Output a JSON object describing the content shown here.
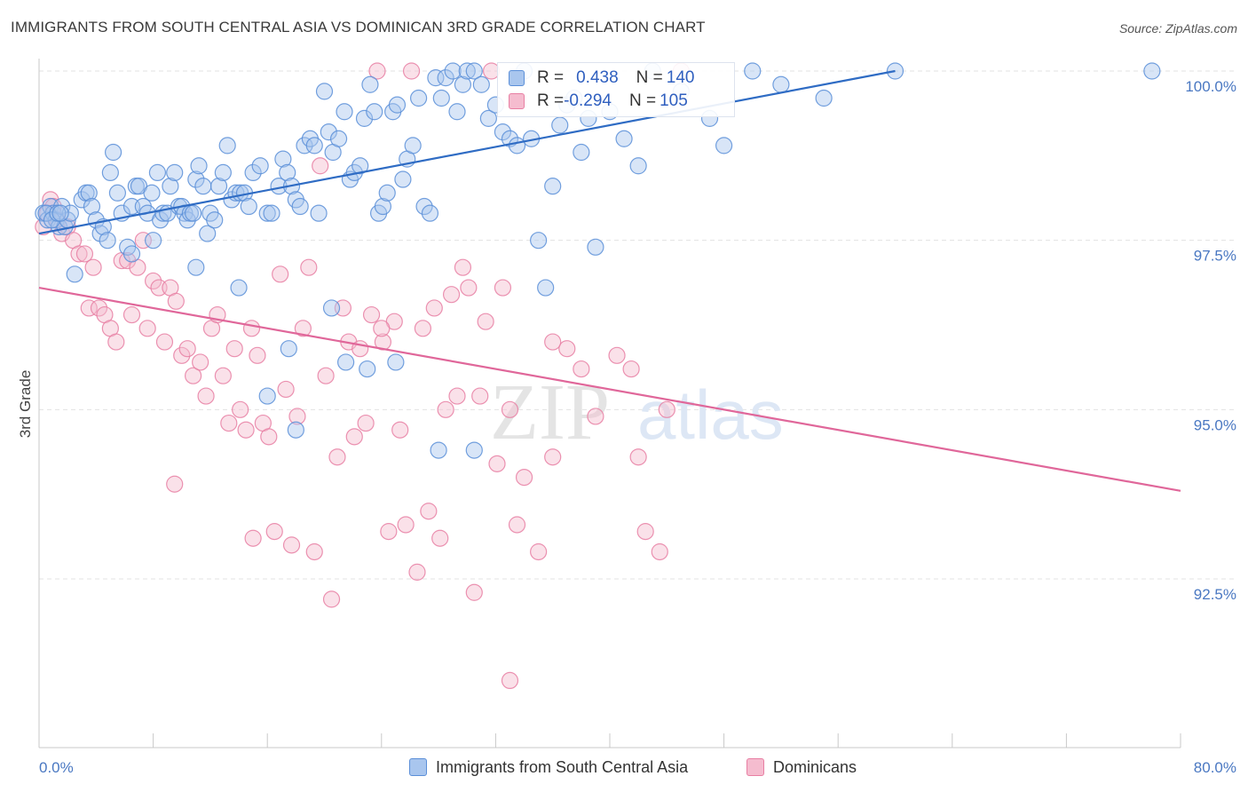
{
  "title": "IMMIGRANTS FROM SOUTH CENTRAL ASIA VS DOMINICAN 3RD GRADE CORRELATION CHART",
  "source": "Source: ZipAtlas.com",
  "watermark": {
    "zip": "ZIP",
    "atlas": "atlas"
  },
  "colors": {
    "blue": "#5b8fd8",
    "blue_fill": "#a9c6ee",
    "pink": "#e87fa3",
    "pink_fill": "#f5bccf",
    "blue_line": "#2f6cc4",
    "pink_line": "#e0679a",
    "tick_text": "#4a78c2"
  },
  "stats": {
    "blue": {
      "r_label": "R = ",
      "r_value": "0.438",
      "n_label": "N = ",
      "n_value": "140"
    },
    "pink": {
      "r_label": "R = ",
      "r_value": "-0.294",
      "n_label": "N = ",
      "n_value": "105"
    }
  },
  "legend": {
    "blue": "Immigrants from South Central Asia",
    "pink": "Dominicans"
  },
  "chart_data": {
    "type": "scatter",
    "ylabel": "3rd Grade",
    "xlim": [
      0,
      80
    ],
    "ylim": [
      90.2,
      100.7
    ],
    "x_tick_labels": [
      "0.0%",
      "80.0%"
    ],
    "y_ticks": [
      {
        "value": 100.0,
        "label": "100.0%"
      },
      {
        "value": 97.5,
        "label": "97.5%"
      },
      {
        "value": 95.0,
        "label": "95.0%"
      },
      {
        "value": 92.5,
        "label": "92.5%"
      }
    ],
    "grid": "horizontal dashed",
    "series": [
      {
        "name": "Immigrants from South Central Asia",
        "trend": {
          "x": [
            0,
            60
          ],
          "y": [
            97.6,
            100.0
          ]
        },
        "points": [
          [
            0.3,
            97.9
          ],
          [
            0.6,
            97.8
          ],
          [
            0.8,
            98.0
          ],
          [
            1.0,
            97.9
          ],
          [
            1.2,
            97.8
          ],
          [
            1.4,
            97.7
          ],
          [
            1.6,
            98.0
          ],
          [
            1.8,
            97.7
          ],
          [
            2.0,
            97.8
          ],
          [
            2.2,
            97.9
          ],
          [
            0.5,
            97.9
          ],
          [
            0.9,
            97.8
          ],
          [
            1.3,
            97.9
          ],
          [
            1.5,
            97.9
          ],
          [
            2.5,
            97.0
          ],
          [
            3.0,
            98.1
          ],
          [
            3.3,
            98.2
          ],
          [
            3.5,
            98.2
          ],
          [
            3.7,
            98.0
          ],
          [
            4.0,
            97.8
          ],
          [
            4.3,
            97.6
          ],
          [
            4.5,
            97.7
          ],
          [
            4.8,
            97.5
          ],
          [
            5.0,
            98.5
          ],
          [
            5.2,
            98.8
          ],
          [
            5.5,
            98.2
          ],
          [
            5.8,
            97.9
          ],
          [
            6.2,
            97.4
          ],
          [
            6.5,
            98.0
          ],
          [
            6.8,
            98.3
          ],
          [
            7.0,
            98.3
          ],
          [
            7.3,
            98.0
          ],
          [
            7.6,
            97.9
          ],
          [
            7.9,
            98.2
          ],
          [
            8.0,
            97.5
          ],
          [
            8.3,
            98.5
          ],
          [
            8.5,
            97.8
          ],
          [
            8.7,
            97.9
          ],
          [
            9.0,
            97.9
          ],
          [
            9.2,
            98.3
          ],
          [
            9.5,
            98.5
          ],
          [
            9.8,
            98.0
          ],
          [
            10.0,
            98.0
          ],
          [
            10.2,
            97.9
          ],
          [
            10.4,
            97.8
          ],
          [
            10.6,
            97.9
          ],
          [
            10.8,
            97.9
          ],
          [
            11.0,
            98.4
          ],
          [
            11.2,
            98.6
          ],
          [
            11.5,
            98.3
          ],
          [
            11.8,
            97.6
          ],
          [
            12.0,
            97.9
          ],
          [
            12.3,
            97.8
          ],
          [
            12.6,
            98.3
          ],
          [
            12.9,
            98.5
          ],
          [
            13.2,
            98.9
          ],
          [
            13.5,
            98.1
          ],
          [
            13.8,
            98.2
          ],
          [
            14.1,
            98.2
          ],
          [
            14.4,
            98.2
          ],
          [
            14.7,
            98.0
          ],
          [
            15.0,
            98.5
          ],
          [
            15.5,
            98.6
          ],
          [
            16.0,
            97.9
          ],
          [
            16.3,
            97.9
          ],
          [
            16.8,
            98.3
          ],
          [
            17.1,
            98.7
          ],
          [
            17.4,
            98.5
          ],
          [
            17.7,
            98.3
          ],
          [
            18.0,
            98.1
          ],
          [
            18.3,
            98.0
          ],
          [
            18.6,
            98.9
          ],
          [
            19.0,
            99.0
          ],
          [
            19.3,
            98.9
          ],
          [
            19.6,
            97.9
          ],
          [
            20.0,
            99.7
          ],
          [
            20.3,
            99.1
          ],
          [
            20.6,
            98.8
          ],
          [
            21.0,
            99.0
          ],
          [
            21.4,
            99.4
          ],
          [
            21.8,
            98.4
          ],
          [
            22.1,
            98.5
          ],
          [
            22.5,
            98.6
          ],
          [
            22.8,
            99.3
          ],
          [
            23.2,
            99.8
          ],
          [
            23.5,
            99.4
          ],
          [
            23.8,
            97.9
          ],
          [
            24.1,
            98.0
          ],
          [
            24.4,
            98.2
          ],
          [
            24.8,
            99.4
          ],
          [
            25.1,
            99.5
          ],
          [
            25.5,
            98.4
          ],
          [
            25.8,
            98.7
          ],
          [
            26.2,
            98.9
          ],
          [
            26.6,
            99.6
          ],
          [
            27.0,
            98.0
          ],
          [
            27.4,
            97.9
          ],
          [
            27.8,
            99.9
          ],
          [
            28.2,
            99.6
          ],
          [
            28.5,
            99.9
          ],
          [
            29.0,
            100.0
          ],
          [
            29.3,
            99.4
          ],
          [
            29.7,
            99.8
          ],
          [
            30.0,
            100.0
          ],
          [
            30.5,
            100.0
          ],
          [
            31.0,
            99.8
          ],
          [
            31.5,
            99.3
          ],
          [
            32.0,
            99.5
          ],
          [
            32.5,
            99.1
          ],
          [
            33.0,
            99.0
          ],
          [
            33.5,
            98.9
          ],
          [
            34.0,
            100.0
          ],
          [
            34.5,
            99.0
          ],
          [
            35.0,
            97.5
          ],
          [
            35.5,
            96.8
          ],
          [
            36.0,
            98.3
          ],
          [
            36.5,
            99.2
          ],
          [
            37.0,
            99.5
          ],
          [
            37.5,
            99.6
          ],
          [
            38.0,
            98.8
          ],
          [
            38.5,
            99.3
          ],
          [
            39.0,
            97.4
          ],
          [
            40.0,
            99.4
          ],
          [
            41.0,
            99.0
          ],
          [
            42.0,
            98.6
          ],
          [
            43.0,
            100.0
          ],
          [
            45.0,
            99.7
          ],
          [
            47.0,
            99.3
          ],
          [
            48.0,
            98.9
          ],
          [
            50.0,
            100.0
          ],
          [
            52.0,
            99.8
          ],
          [
            55.0,
            99.6
          ],
          [
            60.0,
            100.0
          ],
          [
            78.0,
            100.0
          ],
          [
            14.0,
            96.8
          ],
          [
            16.0,
            95.2
          ],
          [
            17.5,
            95.9
          ],
          [
            18.0,
            94.7
          ],
          [
            20.5,
            96.5
          ],
          [
            21.5,
            95.7
          ],
          [
            23.0,
            95.6
          ],
          [
            25.0,
            95.7
          ],
          [
            28.0,
            94.4
          ],
          [
            30.5,
            94.4
          ],
          [
            6.5,
            97.3
          ],
          [
            11.0,
            97.1
          ]
        ]
      },
      {
        "name": "Dominicans",
        "trend": {
          "x": [
            0,
            80
          ],
          "y": [
            96.8,
            93.8
          ]
        },
        "points": [
          [
            0.3,
            97.7
          ],
          [
            0.6,
            97.9
          ],
          [
            0.8,
            98.1
          ],
          [
            1.0,
            98.0
          ],
          [
            1.3,
            97.8
          ],
          [
            1.6,
            97.6
          ],
          [
            2.0,
            97.7
          ],
          [
            2.4,
            97.5
          ],
          [
            2.8,
            97.3
          ],
          [
            3.2,
            97.3
          ],
          [
            3.5,
            96.5
          ],
          [
            3.8,
            97.1
          ],
          [
            4.2,
            96.5
          ],
          [
            4.6,
            96.4
          ],
          [
            5.0,
            96.2
          ],
          [
            5.4,
            96.0
          ],
          [
            5.8,
            97.2
          ],
          [
            6.2,
            97.2
          ],
          [
            6.5,
            96.4
          ],
          [
            6.9,
            97.1
          ],
          [
            7.3,
            97.5
          ],
          [
            7.6,
            96.2
          ],
          [
            8.0,
            96.9
          ],
          [
            8.4,
            96.8
          ],
          [
            8.8,
            96.0
          ],
          [
            9.2,
            96.8
          ],
          [
            9.6,
            96.6
          ],
          [
            10.0,
            95.8
          ],
          [
            10.4,
            95.9
          ],
          [
            10.8,
            95.5
          ],
          [
            11.3,
            95.7
          ],
          [
            11.7,
            95.2
          ],
          [
            12.1,
            96.2
          ],
          [
            12.5,
            96.4
          ],
          [
            12.9,
            95.5
          ],
          [
            13.3,
            94.8
          ],
          [
            13.7,
            95.9
          ],
          [
            14.1,
            95.0
          ],
          [
            14.5,
            94.7
          ],
          [
            14.9,
            96.2
          ],
          [
            15.3,
            95.8
          ],
          [
            15.7,
            94.8
          ],
          [
            16.1,
            94.6
          ],
          [
            16.5,
            93.2
          ],
          [
            16.9,
            97.0
          ],
          [
            17.3,
            95.3
          ],
          [
            17.7,
            93.0
          ],
          [
            18.1,
            94.9
          ],
          [
            18.5,
            96.2
          ],
          [
            18.9,
            97.1
          ],
          [
            19.3,
            92.9
          ],
          [
            19.7,
            98.6
          ],
          [
            20.1,
            95.5
          ],
          [
            20.5,
            92.2
          ],
          [
            20.9,
            94.3
          ],
          [
            21.3,
            96.5
          ],
          [
            21.7,
            96.0
          ],
          [
            22.1,
            94.6
          ],
          [
            22.5,
            95.9
          ],
          [
            22.9,
            94.8
          ],
          [
            23.3,
            96.4
          ],
          [
            23.7,
            100.0
          ],
          [
            24.1,
            96.0
          ],
          [
            24.5,
            93.2
          ],
          [
            24.9,
            96.3
          ],
          [
            25.3,
            94.7
          ],
          [
            25.7,
            93.3
          ],
          [
            26.1,
            100.0
          ],
          [
            26.5,
            92.6
          ],
          [
            26.9,
            96.2
          ],
          [
            27.3,
            93.5
          ],
          [
            27.7,
            96.5
          ],
          [
            28.1,
            93.1
          ],
          [
            28.5,
            95.0
          ],
          [
            28.9,
            96.7
          ],
          [
            29.3,
            95.2
          ],
          [
            29.7,
            97.1
          ],
          [
            30.1,
            96.8
          ],
          [
            30.5,
            92.3
          ],
          [
            30.9,
            95.2
          ],
          [
            31.3,
            96.3
          ],
          [
            31.7,
            100.0
          ],
          [
            32.1,
            94.2
          ],
          [
            32.5,
            96.8
          ],
          [
            33.0,
            95.0
          ],
          [
            33.5,
            93.3
          ],
          [
            34.0,
            94.0
          ],
          [
            35.0,
            92.9
          ],
          [
            36.0,
            94.3
          ],
          [
            37.0,
            95.9
          ],
          [
            38.0,
            95.6
          ],
          [
            39.0,
            94.9
          ],
          [
            40.5,
            95.8
          ],
          [
            41.5,
            95.6
          ],
          [
            42.0,
            94.3
          ],
          [
            42.5,
            93.2
          ],
          [
            43.5,
            92.9
          ],
          [
            45.0,
            100.0
          ],
          [
            33.0,
            91.0
          ],
          [
            15.0,
            93.1
          ],
          [
            9.5,
            93.9
          ],
          [
            24.0,
            96.2
          ],
          [
            36.0,
            96.0
          ],
          [
            44.0,
            95.0
          ]
        ]
      }
    ]
  }
}
